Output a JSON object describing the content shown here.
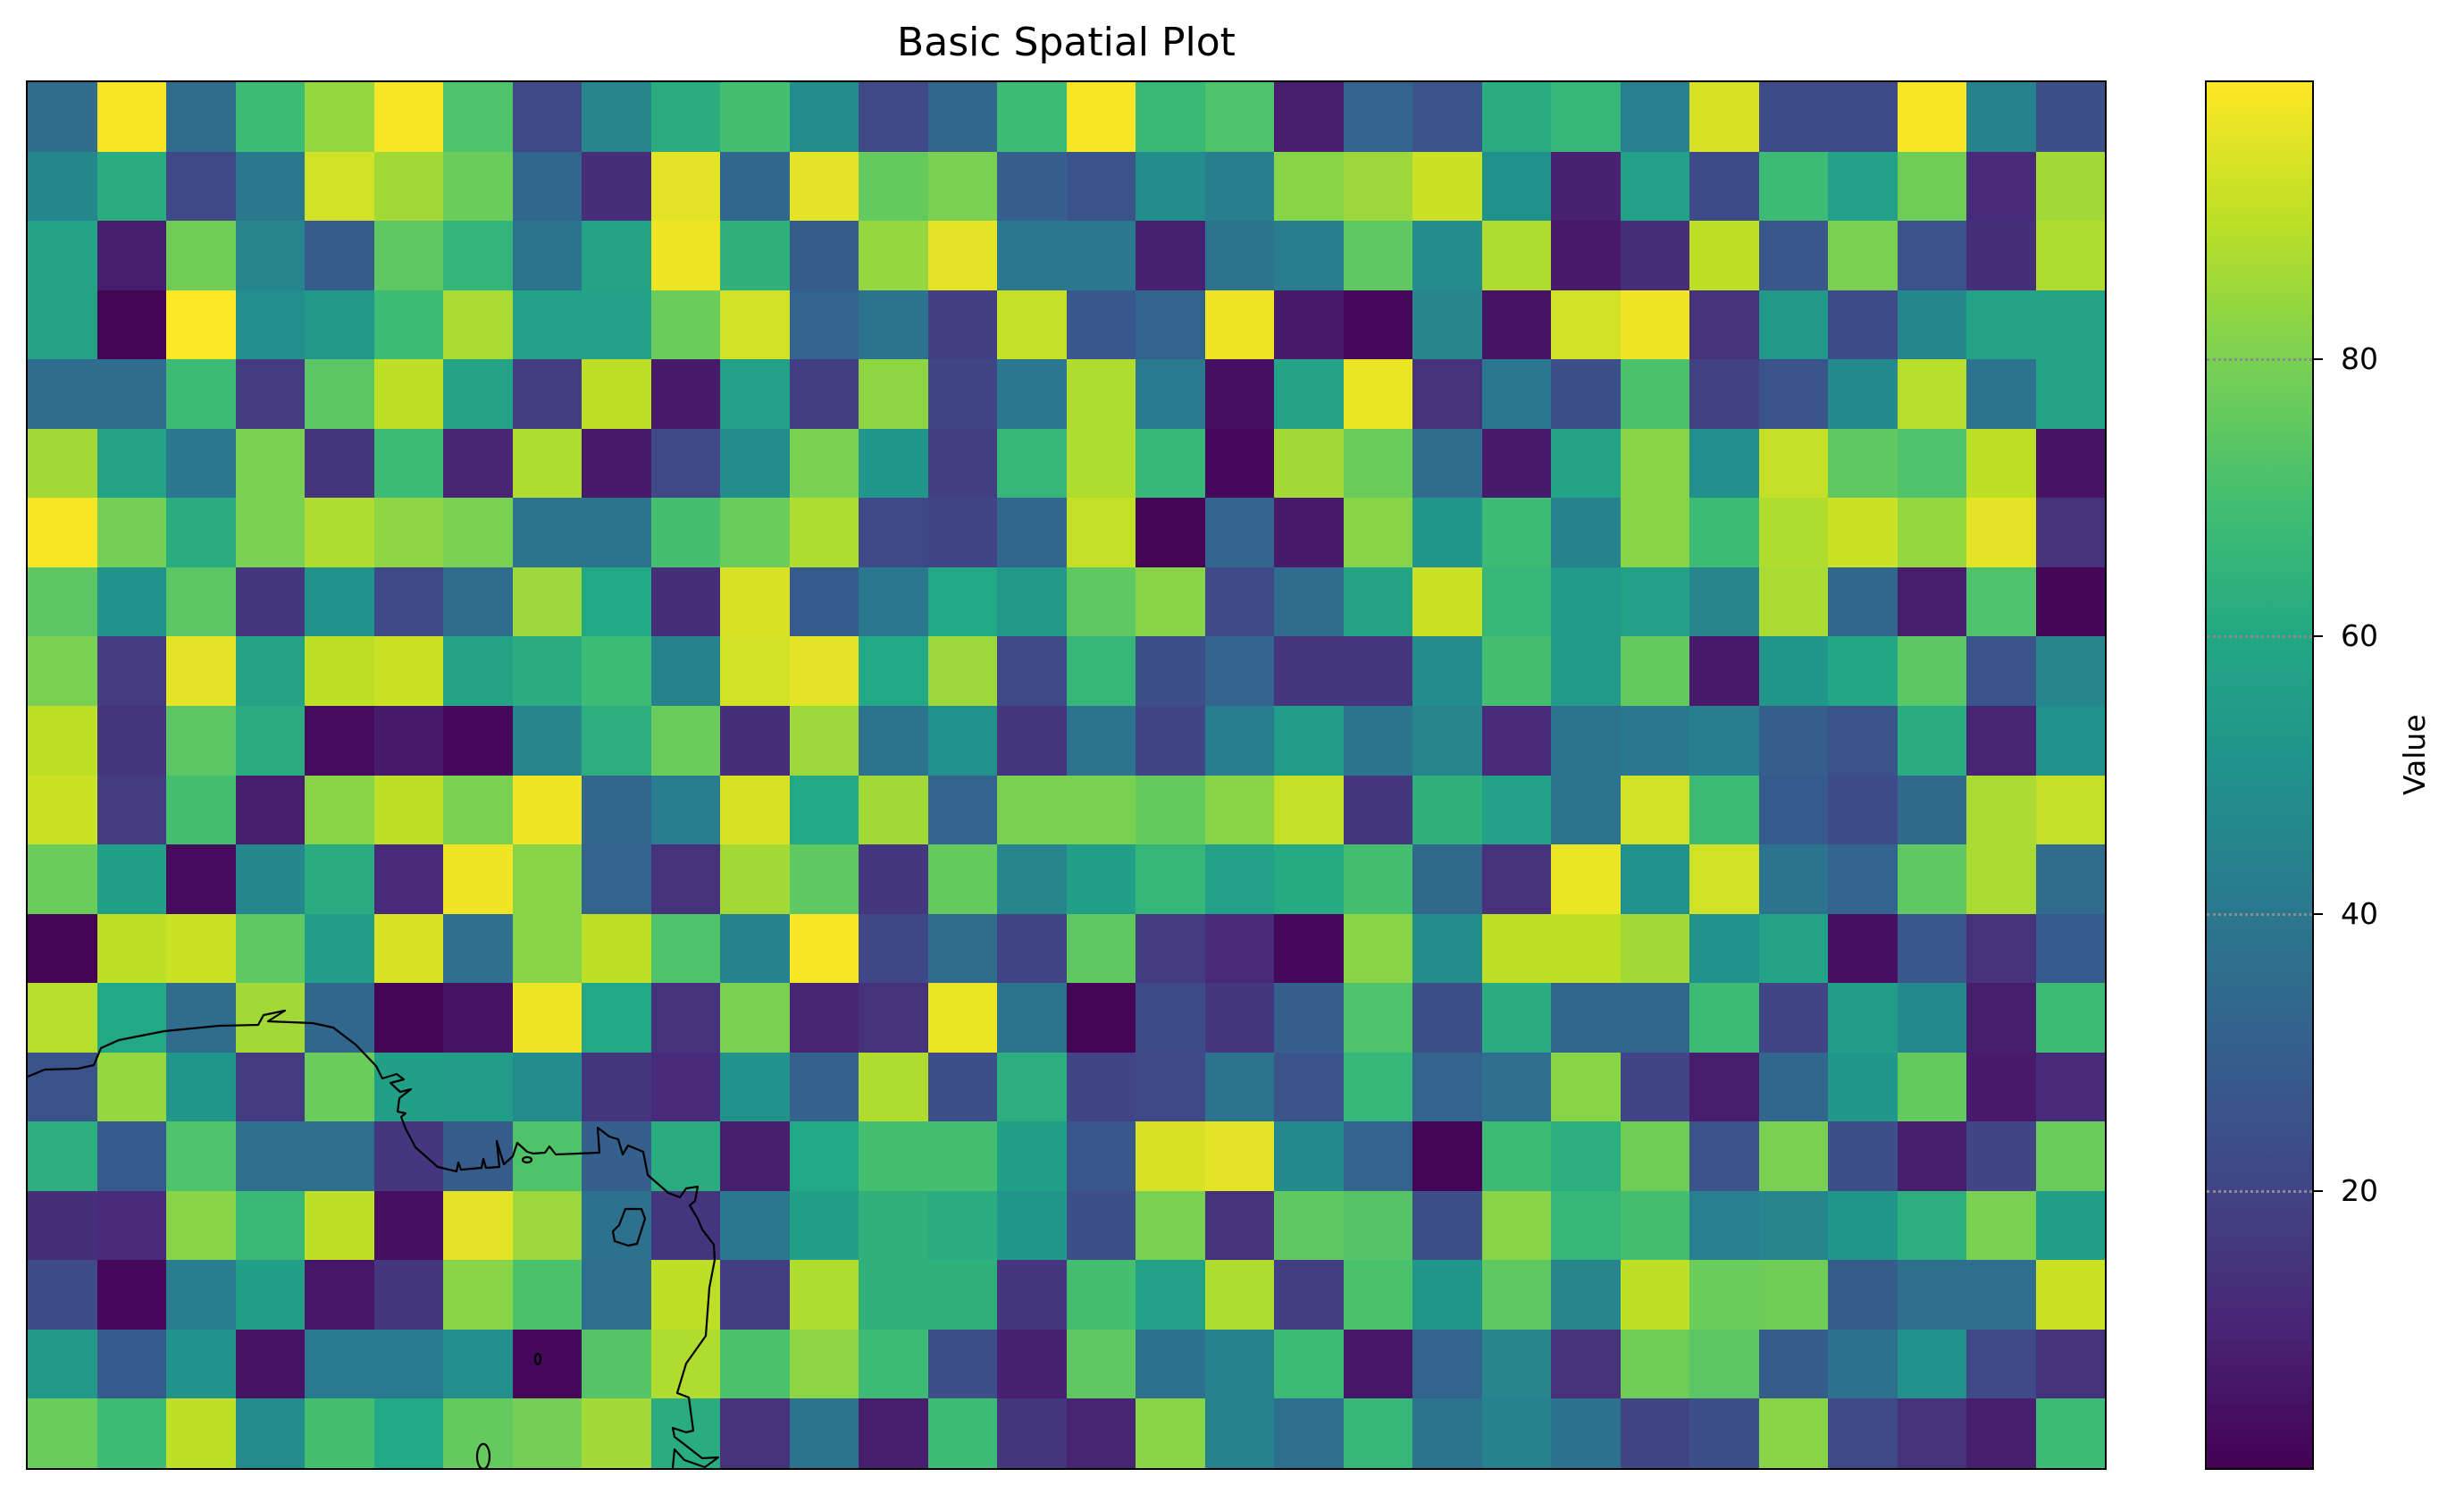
{
  "chart_data": {
    "type": "heatmap",
    "title": "Basic Spatial Plot",
    "xlabel": "",
    "ylabel": "",
    "colormap": "viridis",
    "rows": 20,
    "cols": 30,
    "value_range": [
      0,
      100
    ],
    "colorbar": {
      "label": "Value",
      "ticks": [
        20,
        40,
        60,
        80
      ],
      "tick_labels": [
        "20",
        "40",
        "60",
        "80"
      ],
      "gridlines": "dotted"
    },
    "overlay": "coastline outline (lower-left region)",
    "values": [
      [
        35,
        99,
        35,
        68,
        84,
        99,
        72,
        22,
        45,
        62,
        70,
        48,
        22,
        33,
        68,
        99,
        67,
        72,
        8,
        32,
        26,
        62,
        66,
        43,
        94,
        23,
        23,
        99,
        44,
        24
      ],
      [
        46,
        62,
        22,
        40,
        93,
        86,
        77,
        33,
        13,
        96,
        33,
        96,
        76,
        80,
        30,
        26,
        48,
        42,
        82,
        85,
        92,
        50,
        9,
        57,
        23,
        68,
        57,
        78,
        12,
        86
      ],
      [
        58,
        8,
        78,
        45,
        29,
        75,
        65,
        38,
        58,
        98,
        64,
        29,
        84,
        96,
        40,
        40,
        9,
        38,
        42,
        75,
        48,
        88,
        7,
        13,
        90,
        27,
        80,
        26,
        13,
        88
      ],
      [
        58,
        1,
        100,
        49,
        53,
        68,
        87,
        57,
        57,
        77,
        93,
        32,
        38,
        18,
        91,
        27,
        32,
        98,
        7,
        2,
        45,
        5,
        93,
        98,
        14,
        53,
        23,
        46,
        58,
        58
      ],
      [
        35,
        35,
        68,
        17,
        74,
        90,
        58,
        18,
        90,
        7,
        57,
        18,
        83,
        20,
        40,
        88,
        41,
        4,
        58,
        97,
        14,
        40,
        24,
        71,
        19,
        26,
        47,
        89,
        38,
        58
      ],
      [
        86,
        58,
        40,
        80,
        15,
        68,
        10,
        88,
        7,
        22,
        48,
        80,
        52,
        18,
        66,
        88,
        66,
        2,
        86,
        77,
        35,
        7,
        58,
        82,
        49,
        91,
        75,
        72,
        90,
        5
      ],
      [
        99,
        79,
        62,
        80,
        88,
        83,
        80,
        38,
        38,
        70,
        77,
        88,
        22,
        20,
        33,
        91,
        1,
        32,
        7,
        82,
        52,
        68,
        44,
        82,
        68,
        88,
        92,
        84,
        96,
        14
      ],
      [
        74,
        50,
        74,
        16,
        51,
        22,
        35,
        85,
        60,
        13,
        94,
        28,
        40,
        60,
        53,
        75,
        82,
        22,
        35,
        58,
        92,
        66,
        54,
        57,
        45,
        87,
        33,
        8,
        72,
        1
      ],
      [
        80,
        17,
        96,
        58,
        90,
        92,
        58,
        62,
        68,
        44,
        93,
        96,
        60,
        85,
        22,
        66,
        24,
        32,
        15,
        15,
        48,
        70,
        54,
        76,
        7,
        52,
        59,
        74,
        26,
        45
      ],
      [
        90,
        15,
        74,
        62,
        3,
        7,
        2,
        45,
        63,
        77,
        13,
        85,
        38,
        50,
        15,
        38,
        20,
        42,
        55,
        38,
        45,
        12,
        38,
        40,
        42,
        30,
        26,
        62,
        10,
        50
      ],
      [
        92,
        17,
        70,
        8,
        82,
        90,
        80,
        98,
        33,
        42,
        94,
        60,
        86,
        32,
        80,
        80,
        76,
        82,
        91,
        16,
        64,
        57,
        38,
        93,
        68,
        28,
        23,
        34,
        87,
        91
      ],
      [
        77,
        56,
        3,
        46,
        62,
        12,
        98,
        82,
        32,
        14,
        86,
        75,
        16,
        76,
        45,
        56,
        66,
        57,
        61,
        70,
        34,
        14,
        97,
        50,
        93,
        38,
        32,
        75,
        87,
        35
      ],
      [
        1,
        90,
        92,
        75,
        55,
        94,
        36,
        82,
        90,
        72,
        44,
        99,
        21,
        35,
        20,
        75,
        17,
        12,
        2,
        82,
        48,
        90,
        90,
        86,
        50,
        58,
        4,
        27,
        14,
        28
      ],
      [
        89,
        60,
        35,
        86,
        33,
        1,
        5,
        98,
        60,
        14,
        80,
        10,
        14,
        97,
        38,
        1,
        23,
        16,
        30,
        72,
        24,
        62,
        33,
        33,
        68,
        20,
        55,
        47,
        8,
        68
      ],
      [
        26,
        84,
        52,
        17,
        77,
        56,
        55,
        48,
        15,
        12,
        51,
        31,
        88,
        24,
        63,
        20,
        22,
        38,
        26,
        66,
        32,
        36,
        82,
        20,
        8,
        33,
        52,
        76,
        7,
        12
      ],
      [
        63,
        28,
        72,
        36,
        36,
        16,
        29,
        72,
        30,
        62,
        8,
        60,
        70,
        70,
        56,
        27,
        94,
        96,
        47,
        32,
        1,
        68,
        63,
        78,
        26,
        80,
        24,
        8,
        20,
        77
      ],
      [
        13,
        12,
        82,
        67,
        90,
        4,
        96,
        85,
        37,
        15,
        40,
        56,
        64,
        62,
        52,
        24,
        80,
        14,
        75,
        73,
        24,
        82,
        66,
        70,
        43,
        45,
        52,
        63,
        80,
        56
      ],
      [
        23,
        2,
        42,
        56,
        6,
        16,
        82,
        71,
        36,
        90,
        18,
        88,
        64,
        64,
        16,
        70,
        57,
        88,
        18,
        71,
        52,
        75,
        45,
        90,
        77,
        78,
        29,
        36,
        36,
        92
      ],
      [
        53,
        28,
        51,
        5,
        41,
        41,
        49,
        2,
        73,
        88,
        71,
        83,
        68,
        24,
        9,
        75,
        37,
        44,
        68,
        6,
        32,
        45,
        14,
        78,
        74,
        29,
        37,
        51,
        22,
        14
      ],
      [
        77,
        68,
        90,
        48,
        70,
        60,
        76,
        79,
        86,
        62,
        14,
        38,
        8,
        68,
        16,
        10,
        82,
        44,
        36,
        66,
        38,
        44,
        37,
        20,
        24,
        82,
        22,
        14,
        8,
        68
      ]
    ]
  },
  "figure": {
    "title": "Basic Spatial Plot",
    "colorbar_label": "Value",
    "colorbar_ticks": [
      {
        "value": 80,
        "label": "80"
      },
      {
        "value": 60,
        "label": "60"
      },
      {
        "value": 40,
        "label": "40"
      },
      {
        "value": 20,
        "label": "20"
      }
    ],
    "colors": {
      "viridis_stops": [
        "#440154",
        "#482475",
        "#414487",
        "#355f8d",
        "#2a788e",
        "#21918c",
        "#22a884",
        "#44bf70",
        "#7ad151",
        "#bddf26",
        "#fde725"
      ],
      "frame": "#000000",
      "coastline": "#000000",
      "colorbar_gridline": "#8c8c8c"
    }
  }
}
